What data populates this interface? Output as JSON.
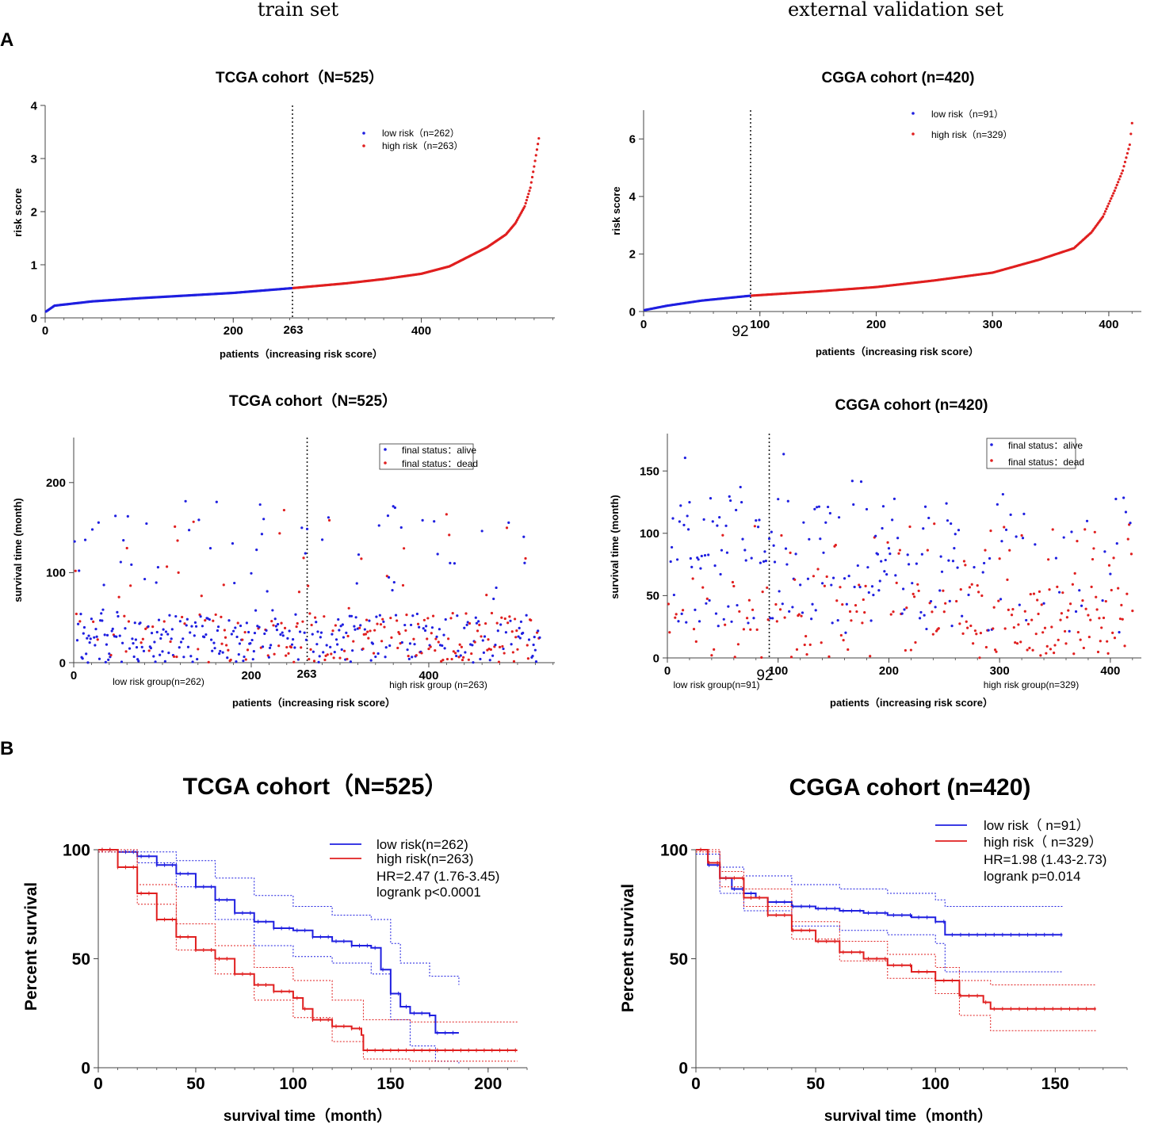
{
  "headers": {
    "left": "train set",
    "right": "external validation set"
  },
  "panel_labels": {
    "a": "A",
    "b": "B"
  },
  "colors": {
    "low": "#1f1fe0",
    "high": "#e01f1f",
    "axis": "#444444",
    "cut": "#222222"
  },
  "chart_data": [
    {
      "id": "tcga_risk",
      "type": "scatter",
      "title": "TCGA cohort（N=525）",
      "xlabel": "patients（increasing risk score）",
      "ylabel": "risk score",
      "xlim": [
        0,
        542
      ],
      "ylim": [
        0,
        4
      ],
      "xticks": [
        0,
        200,
        400
      ],
      "yticks": [
        0,
        1,
        2,
        3,
        4
      ],
      "cutoff": 263,
      "cutoff_label": "263",
      "n": 525,
      "curve_knots": [
        [
          1,
          0.12
        ],
        [
          10,
          0.23
        ],
        [
          50,
          0.31
        ],
        [
          100,
          0.37
        ],
        [
          150,
          0.42
        ],
        [
          200,
          0.47
        ],
        [
          263,
          0.56
        ],
        [
          320,
          0.65
        ],
        [
          360,
          0.73
        ],
        [
          400,
          0.83
        ],
        [
          430,
          0.97
        ],
        [
          450,
          1.15
        ],
        [
          470,
          1.33
        ],
        [
          490,
          1.57
        ],
        [
          500,
          1.78
        ],
        [
          510,
          2.1
        ],
        [
          516,
          2.45
        ],
        [
          520,
          2.85
        ],
        [
          525,
          3.38
        ]
      ],
      "legend": [
        "low risk（n=262）",
        "high risk（n=263）"
      ]
    },
    {
      "id": "cgga_risk",
      "type": "scatter",
      "title": "CGGA cohort (n=420)",
      "xlabel": "patients（increasing risk score）",
      "ylabel": "risk score",
      "xlim": [
        0,
        428
      ],
      "ylim": [
        0,
        7
      ],
      "xticks": [
        0,
        100,
        200,
        300,
        400
      ],
      "yticks": [
        0,
        2,
        4,
        6
      ],
      "cutoff": 92,
      "cutoff_label": "92",
      "n": 420,
      "curve_knots": [
        [
          1,
          0.05
        ],
        [
          20,
          0.2
        ],
        [
          50,
          0.38
        ],
        [
          92,
          0.55
        ],
        [
          150,
          0.7
        ],
        [
          200,
          0.85
        ],
        [
          250,
          1.08
        ],
        [
          300,
          1.35
        ],
        [
          340,
          1.8
        ],
        [
          370,
          2.2
        ],
        [
          385,
          2.75
        ],
        [
          395,
          3.3
        ],
        [
          405,
          4.2
        ],
        [
          412,
          4.9
        ],
        [
          418,
          5.8
        ],
        [
          420,
          6.55
        ]
      ],
      "legend": [
        "low risk（n=91）",
        "high risk（n=329）"
      ]
    },
    {
      "id": "tcga_status",
      "type": "scatter",
      "title": "TCGA cohort（N=525）",
      "xlabel": "patients（increasing risk score）",
      "ylabel": "survival time (month)",
      "xlim": [
        0,
        542
      ],
      "ylim": [
        0,
        250
      ],
      "xticks": [
        0,
        200,
        400
      ],
      "yticks": [
        0,
        100,
        200
      ],
      "cutoff": 263,
      "cutoff_label": "263",
      "n": 525,
      "seed": 7,
      "group_labels": [
        "low risk group(n=262)",
        "high risk group (n=263)"
      ],
      "legend": [
        "final status：alive",
        "final status：dead"
      ]
    },
    {
      "id": "cgga_status",
      "type": "scatter",
      "title": "CGGA cohort (n=420)",
      "xlabel": "patients（increasing risk score）",
      "ylabel": "survival time (month)",
      "xlim": [
        0,
        428
      ],
      "ylim": [
        0,
        180
      ],
      "xticks": [
        0,
        100,
        200,
        300,
        400
      ],
      "yticks": [
        0,
        50,
        100,
        150
      ],
      "cutoff": 92,
      "cutoff_label": "92",
      "n": 420,
      "seed": 13,
      "group_labels": [
        "low risk group(n=91)",
        "high risk group(n=329)"
      ],
      "legend": [
        "final status：alive",
        "final status：dead"
      ]
    },
    {
      "id": "tcga_km",
      "type": "line",
      "title": "TCGA cohort（N=525）",
      "xlabel": "survival time（month）",
      "ylabel": "Percent survival",
      "xlim": [
        0,
        220
      ],
      "ylim": [
        0,
        100
      ],
      "xticks": [
        0,
        50,
        100,
        150,
        200
      ],
      "yticks": [
        0,
        50,
        100
      ],
      "series": [
        {
          "name": "low risk(n=262)",
          "color": "low",
          "end": 185,
          "knots": [
            [
              0,
              100
            ],
            [
              10,
              99
            ],
            [
              20,
              97
            ],
            [
              30,
              93
            ],
            [
              40,
              89
            ],
            [
              50,
              83
            ],
            [
              60,
              77
            ],
            [
              70,
              71
            ],
            [
              80,
              67
            ],
            [
              90,
              64
            ],
            [
              100,
              63
            ],
            [
              110,
              60
            ],
            [
              120,
              58
            ],
            [
              130,
              56
            ],
            [
              140,
              55
            ],
            [
              145,
              45
            ],
            [
              150,
              34
            ],
            [
              155,
              28
            ],
            [
              160,
              25
            ],
            [
              170,
              24
            ],
            [
              173,
              16
            ],
            [
              185,
              16
            ]
          ],
          "upper": [
            [
              0,
              100
            ],
            [
              20,
              99
            ],
            [
              40,
              95
            ],
            [
              60,
              87
            ],
            [
              80,
              79
            ],
            [
              100,
              74
            ],
            [
              120,
              70
            ],
            [
              140,
              68
            ],
            [
              150,
              57
            ],
            [
              155,
              48
            ],
            [
              170,
              42
            ],
            [
              185,
              38
            ]
          ],
          "lower": [
            [
              0,
              99
            ],
            [
              20,
              94
            ],
            [
              40,
              83
            ],
            [
              60,
              68
            ],
            [
              80,
              56
            ],
            [
              100,
              51
            ],
            [
              120,
              48
            ],
            [
              140,
              43
            ],
            [
              150,
              22
            ],
            [
              160,
              10
            ],
            [
              173,
              3
            ],
            [
              185,
              2
            ]
          ]
        },
        {
          "name": "high risk(n=263)",
          "color": "high",
          "end": 215,
          "knots": [
            [
              0,
              100
            ],
            [
              10,
              92
            ],
            [
              20,
              80
            ],
            [
              30,
              68
            ],
            [
              40,
              60
            ],
            [
              50,
              54
            ],
            [
              60,
              50
            ],
            [
              70,
              43
            ],
            [
              80,
              38
            ],
            [
              90,
              35
            ],
            [
              100,
              32
            ],
            [
              105,
              27
            ],
            [
              110,
              22
            ],
            [
              120,
              19
            ],
            [
              130,
              18
            ],
            [
              135,
              15
            ],
            [
              136,
              8
            ],
            [
              160,
              8
            ],
            [
              215,
              8
            ]
          ],
          "upper": [
            [
              0,
              100
            ],
            [
              20,
              84
            ],
            [
              40,
              66
            ],
            [
              60,
              56
            ],
            [
              80,
              46
            ],
            [
              100,
              40
            ],
            [
              120,
              31
            ],
            [
              136,
              22
            ],
            [
              160,
              21
            ],
            [
              215,
              21
            ]
          ],
          "lower": [
            [
              0,
              99
            ],
            [
              20,
              75
            ],
            [
              40,
              54
            ],
            [
              60,
              43
            ],
            [
              80,
              31
            ],
            [
              100,
              23
            ],
            [
              120,
              12
            ],
            [
              136,
              4
            ],
            [
              160,
              3
            ],
            [
              215,
              3
            ]
          ]
        }
      ],
      "legend": [
        "low risk(n=262)",
        "high risk(n=263)"
      ],
      "stats": [
        "HR=2.47 (1.76-3.45)",
        "logrank p<0.0001"
      ]
    },
    {
      "id": "cgga_km",
      "type": "line",
      "title": "CGGA cohort (n=420)",
      "xlabel": "survival time（month）",
      "ylabel": "Percent survival",
      "xlim": [
        0,
        180
      ],
      "ylim": [
        0,
        100
      ],
      "xticks": [
        0,
        50,
        100,
        150
      ],
      "yticks": [
        0,
        50,
        100
      ],
      "series": [
        {
          "name": "low risk（n=91）",
          "color": "low",
          "end": 153,
          "knots": [
            [
              0,
              100
            ],
            [
              5,
              93
            ],
            [
              10,
              87
            ],
            [
              15,
              82
            ],
            [
              20,
              80
            ],
            [
              25,
              78
            ],
            [
              30,
              76
            ],
            [
              40,
              74
            ],
            [
              50,
              73
            ],
            [
              60,
              72
            ],
            [
              70,
              71
            ],
            [
              80,
              70
            ],
            [
              90,
              69
            ],
            [
              100,
              67
            ],
            [
              103,
              67
            ],
            [
              104,
              61
            ],
            [
              153,
              61
            ]
          ],
          "upper": [
            [
              0,
              100
            ],
            [
              10,
              92
            ],
            [
              20,
              88
            ],
            [
              40,
              84
            ],
            [
              60,
              82
            ],
            [
              80,
              80
            ],
            [
              100,
              77
            ],
            [
              104,
              74
            ],
            [
              153,
              74
            ]
          ],
          "lower": [
            [
              0,
              98
            ],
            [
              10,
              80
            ],
            [
              20,
              72
            ],
            [
              40,
              65
            ],
            [
              60,
              63
            ],
            [
              80,
              61
            ],
            [
              100,
              57
            ],
            [
              104,
              44
            ],
            [
              153,
              44
            ]
          ]
        },
        {
          "name": "high risk（n=329）",
          "color": "high",
          "end": 167,
          "knots": [
            [
              0,
              100
            ],
            [
              5,
              94
            ],
            [
              10,
              87
            ],
            [
              20,
              78
            ],
            [
              30,
              70
            ],
            [
              40,
              63
            ],
            [
              50,
              58
            ],
            [
              60,
              53
            ],
            [
              70,
              50
            ],
            [
              80,
              47
            ],
            [
              90,
              44
            ],
            [
              100,
              40
            ],
            [
              110,
              33
            ],
            [
              120,
              30
            ],
            [
              123,
              27
            ],
            [
              167,
              27
            ]
          ],
          "upper": [
            [
              0,
              100
            ],
            [
              10,
              90
            ],
            [
              20,
              82
            ],
            [
              40,
              67
            ],
            [
              60,
              58
            ],
            [
              80,
              52
            ],
            [
              100,
              46
            ],
            [
              110,
              40
            ],
            [
              123,
              38
            ],
            [
              167,
              38
            ]
          ],
          "lower": [
            [
              0,
              99
            ],
            [
              10,
              83
            ],
            [
              20,
              74
            ],
            [
              40,
              59
            ],
            [
              60,
              49
            ],
            [
              80,
              41
            ],
            [
              100,
              34
            ],
            [
              110,
              24
            ],
            [
              123,
              17
            ],
            [
              167,
              17
            ]
          ]
        }
      ],
      "legend": [
        "low risk（ n=91）",
        "high risk（ n=329）"
      ],
      "stats": [
        "HR=1.98 (1.43-2.73)",
        "logrank p=0.014"
      ]
    }
  ]
}
